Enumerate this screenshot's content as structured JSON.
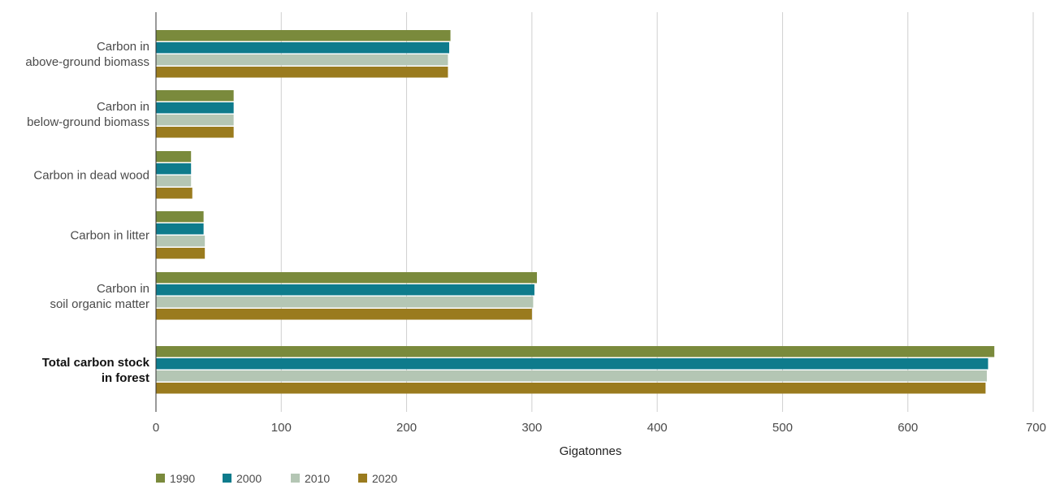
{
  "chart_data": {
    "type": "bar",
    "orientation": "horizontal",
    "categories": [
      [
        "Carbon in",
        "above-ground biomass"
      ],
      [
        "Carbon in",
        "below-ground biomass"
      ],
      [
        "Carbon in dead wood"
      ],
      [
        "Carbon in litter"
      ],
      [
        "Carbon in",
        "soil organic matter"
      ],
      [
        "Total carbon stock",
        "in forest"
      ]
    ],
    "category_bold": [
      false,
      false,
      false,
      false,
      false,
      true
    ],
    "series": [
      {
        "name": "1990",
        "color": "#7a8a3c",
        "values": [
          235,
          62,
          28,
          38,
          304,
          669
        ]
      },
      {
        "name": "2000",
        "color": "#0e7b8c",
        "values": [
          234,
          62,
          28,
          38,
          302,
          664
        ]
      },
      {
        "name": "2010",
        "color": "#b4c6b4",
        "values": [
          233,
          62,
          28,
          39,
          301,
          663
        ]
      },
      {
        "name": "2020",
        "color": "#9a7b1e",
        "values": [
          233,
          62,
          29,
          39,
          300,
          662
        ]
      }
    ],
    "xlabel": "Gigatonnes",
    "xlim": [
      0,
      700
    ],
    "xticks": [
      0,
      100,
      200,
      300,
      400,
      500,
      600,
      700
    ],
    "grid": true,
    "legend_position": "bottom-left"
  }
}
